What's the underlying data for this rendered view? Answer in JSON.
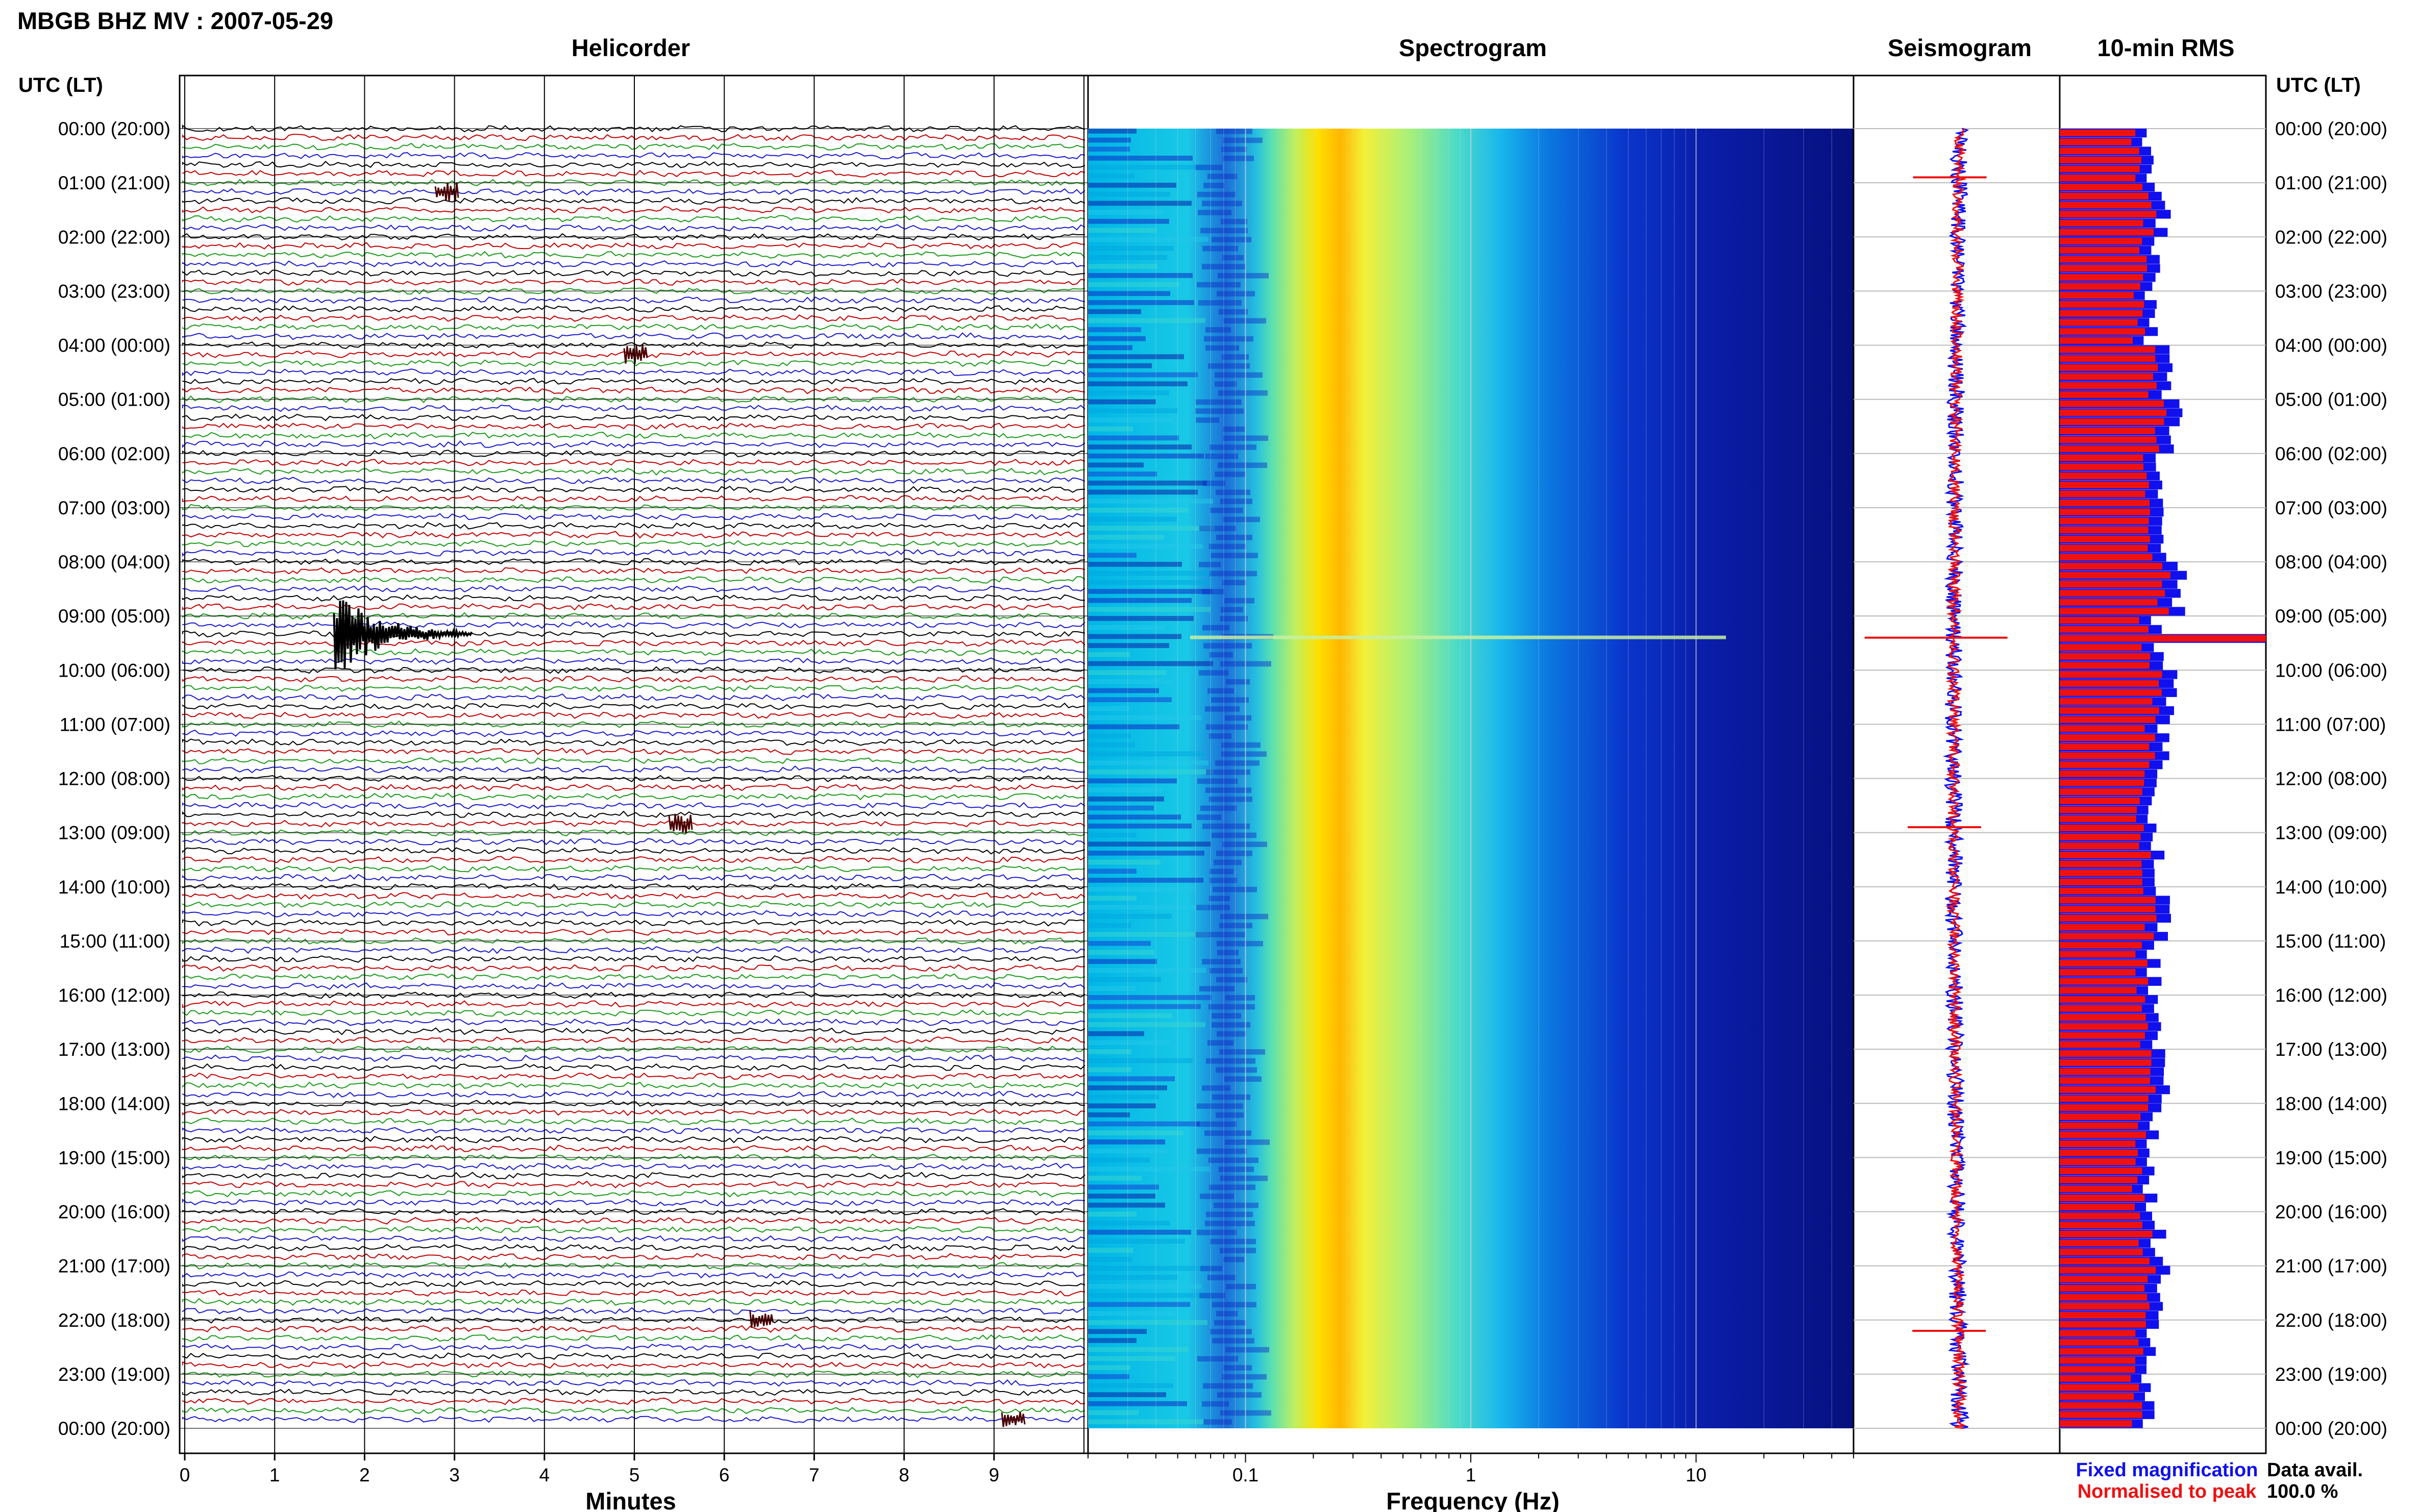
{
  "header": {
    "title": "MBGB BHZ MV : 2007-05-29",
    "utc_label_left": "UTC (LT)",
    "utc_label_right": "UTC (LT)"
  },
  "panels": {
    "helicorder": "Helicorder",
    "spectrogram": "Spectrogram",
    "seismogram": "Seismogram",
    "rms": "10-min RMS"
  },
  "time_labels": [
    "00:00 (20:00)",
    "01:00 (21:00)",
    "02:00 (22:00)",
    "03:00 (23:00)",
    "04:00 (00:00)",
    "05:00 (01:00)",
    "06:00 (02:00)",
    "07:00 (03:00)",
    "08:00 (04:00)",
    "09:00 (05:00)",
    "10:00 (06:00)",
    "11:00 (07:00)",
    "12:00 (08:00)",
    "13:00 (09:00)",
    "14:00 (10:00)",
    "15:00 (11:00)",
    "16:00 (12:00)",
    "17:00 (13:00)",
    "18:00 (14:00)",
    "19:00 (15:00)",
    "20:00 (16:00)",
    "21:00 (17:00)",
    "22:00 (18:00)",
    "23:00 (19:00)",
    "00:00 (20:00)"
  ],
  "footer": {
    "xlabel_minutes": "Minutes",
    "xlabel_frequency": "Frequency (Hz)",
    "legend_fixed": "Fixed magnification",
    "legend_normalised": "Normalised to peak",
    "data_avail_label": "Data avail.",
    "data_avail_value": "100.0 %"
  },
  "colors": {
    "fixed": "#1010ee",
    "normalised": "#ee1111",
    "trace_cycle": [
      "#000000",
      "#c00000",
      "#1a9a1a",
      "#1a1acc"
    ]
  },
  "chart_data": [
    {
      "type": "line",
      "name": "helicorder",
      "title": "Helicorder",
      "xlabel": "Minutes",
      "xlim": [
        0,
        10
      ],
      "x_ticks": [
        "0",
        "1",
        "2",
        "3",
        "4",
        "5",
        "6",
        "7",
        "8",
        "9"
      ],
      "rows_per_hour": 6,
      "ylim_hours_utc": [
        0,
        24
      ],
      "events": [
        {
          "time_utc": "01:10",
          "minute": 2.9,
          "amplitude": "small"
        },
        {
          "time_utc": "04:10",
          "minute": 5.0,
          "amplitude": "small"
        },
        {
          "time_utc": "09:20",
          "minute": 2.0,
          "amplitude": "large"
        },
        {
          "time_utc": "12:50",
          "minute": 5.5,
          "amplitude": "small"
        },
        {
          "time_utc": "22:00",
          "minute": 6.4,
          "amplitude": "small"
        },
        {
          "time_utc": "23:50",
          "minute": 9.2,
          "amplitude": "small"
        }
      ]
    },
    {
      "type": "heatmap",
      "name": "spectrogram",
      "title": "Spectrogram",
      "xlabel": "Frequency (Hz)",
      "x_scale": "log",
      "xlim": [
        0.02,
        50
      ],
      "x_ticks": [
        {
          "value": 0.1,
          "label": "0.1"
        },
        {
          "value": 1,
          "label": "1"
        },
        {
          "value": 10,
          "label": "10"
        }
      ],
      "peak_energy_hz": 0.25,
      "colormap": "jet"
    },
    {
      "type": "line",
      "name": "seismogram",
      "title": "Seismogram",
      "series": [
        {
          "name": "Fixed magnification"
        },
        {
          "name": "Normalised to peak"
        }
      ],
      "spikes_utc_hours": [
        0.9,
        9.4,
        12.9,
        22.2
      ]
    },
    {
      "type": "bar",
      "name": "rms",
      "title": "10-min RMS",
      "orientation": "horizontal",
      "interval_minutes": 10,
      "series": [
        {
          "name": "Fixed magnification",
          "color": "#1010ee"
        },
        {
          "name": "Normalised to peak",
          "color": "#ee1111"
        }
      ],
      "fixed_magnification_relative": [
        0.42,
        0.5,
        0.46,
        0.44,
        0.52,
        0.56,
        0.48,
        0.52,
        0.58,
        0.47,
        0.55,
        0.5,
        0.44,
        0.48,
        0.5,
        0.46,
        0.47,
        0.51,
        0.46,
        0.44,
        0.48,
        0.5,
        0.45,
        0.43
      ],
      "peak_utc": "09:20"
    }
  ]
}
